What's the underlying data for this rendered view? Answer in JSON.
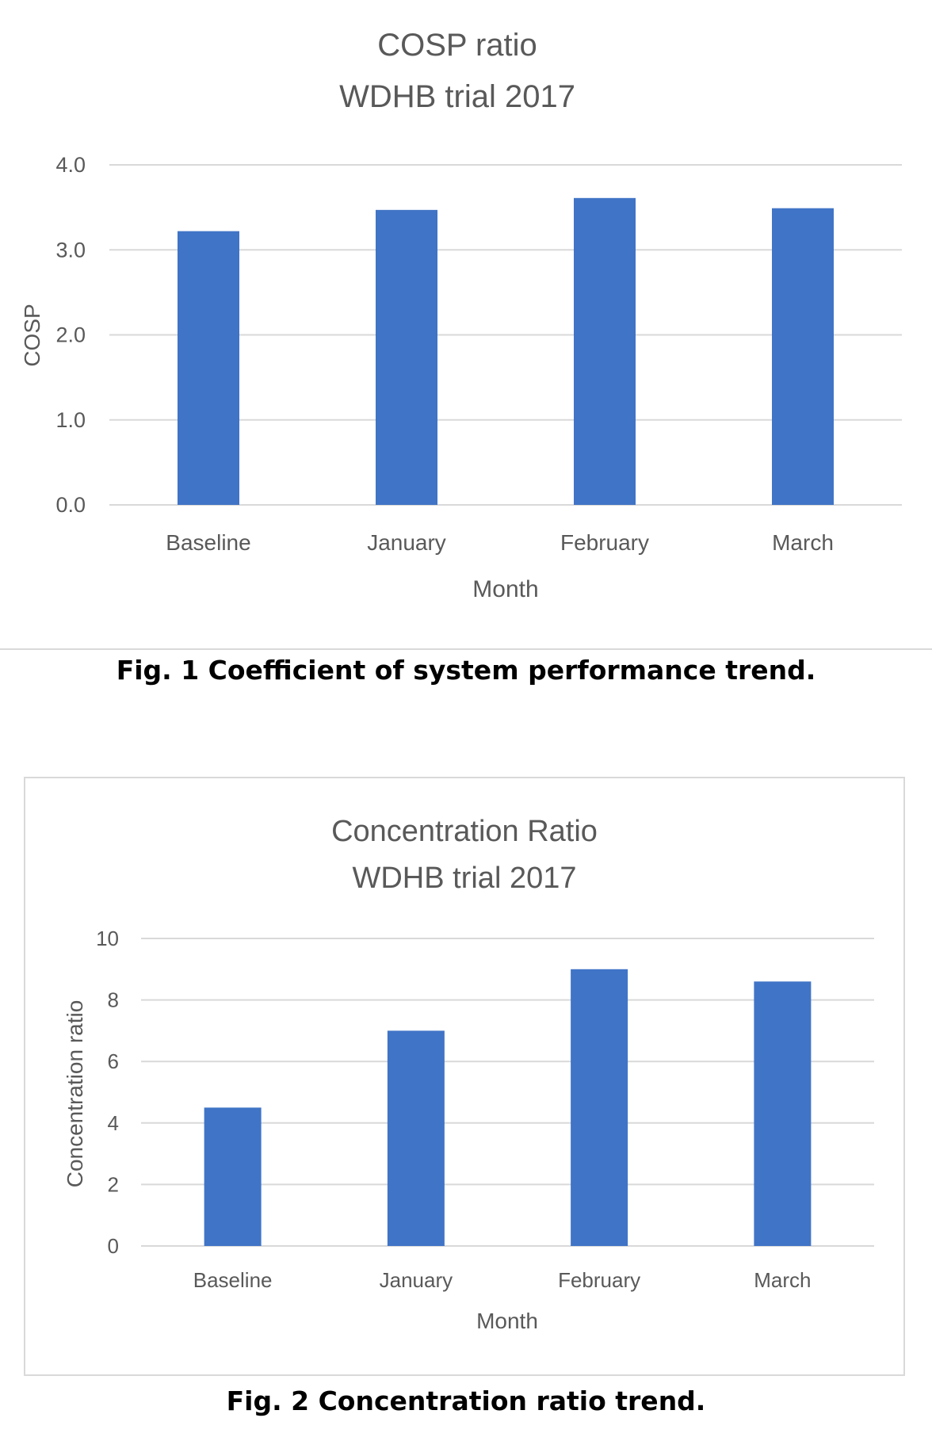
{
  "chart_data": [
    {
      "type": "bar",
      "title": "COSP ratio",
      "subtitle": "WDHB trial 2017",
      "xlabel": "Month",
      "ylabel": "COSP",
      "categories": [
        "Baseline",
        "January",
        "February",
        "March"
      ],
      "values": [
        3.22,
        3.47,
        3.61,
        3.49
      ],
      "ylim": [
        0,
        4
      ],
      "yticks": [
        "0.0",
        "1.0",
        "2.0",
        "3.0",
        "4.0"
      ],
      "grid": true,
      "legend": "none",
      "bar_color": "#4074c6"
    },
    {
      "type": "bar",
      "title": "Concentration Ratio",
      "subtitle": "WDHB trial 2017",
      "xlabel": "Month",
      "ylabel": "Concentration ratio",
      "categories": [
        "Baseline",
        "January",
        "February",
        "March"
      ],
      "values": [
        4.5,
        7.0,
        9.0,
        8.6
      ],
      "ylim": [
        0,
        10
      ],
      "yticks": [
        "0",
        "2",
        "4",
        "6",
        "8",
        "10"
      ],
      "grid": true,
      "legend": "none",
      "bar_color": "#4074c6"
    }
  ],
  "captions": {
    "fig1": "Fig. 1 Coefficient of system performance trend.",
    "fig2": "Fig. 2 Concentration ratio trend."
  },
  "colors": {
    "gridline": "#d9d9d9",
    "text": "#595959",
    "bar": "#4074c6"
  }
}
